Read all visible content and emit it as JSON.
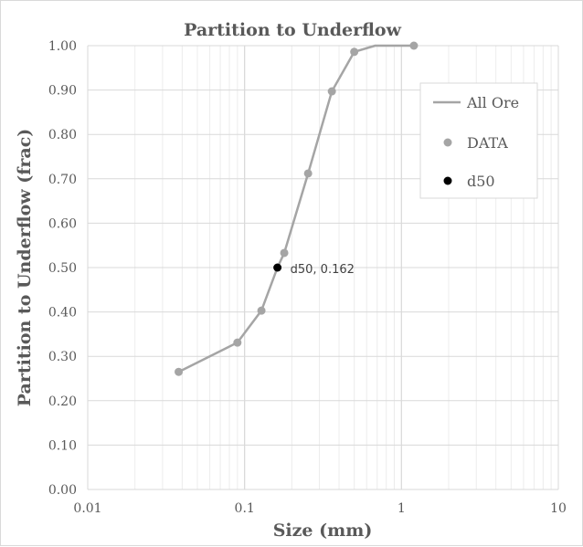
{
  "chart_data": {
    "type": "scatter",
    "title": "Partition to Underflow",
    "xlabel": "Size (mm)",
    "ylabel": "Partition to Underflow (frac)",
    "xscale": "log",
    "xlim": [
      0.01,
      10
    ],
    "ylim": [
      0,
      1
    ],
    "x_ticks": [
      "0.01",
      "0.1",
      "1",
      "10"
    ],
    "y_ticks": [
      "0.00",
      "0.10",
      "0.20",
      "0.30",
      "0.40",
      "0.50",
      "0.60",
      "0.70",
      "0.80",
      "0.90",
      "1.00"
    ],
    "grid": true,
    "legend_position": "right",
    "series": [
      {
        "name": "All Ore",
        "kind": "line",
        "color": "#a5a5a5",
        "x": [
          0.038,
          0.09,
          0.128,
          0.162,
          0.179,
          0.254,
          0.36,
          0.5,
          0.68,
          1.2
        ],
        "y": [
          0.265,
          0.331,
          0.403,
          0.5,
          0.533,
          0.712,
          0.897,
          0.986,
          1.0,
          1.0
        ]
      },
      {
        "name": "DATA",
        "kind": "marker",
        "color": "#a5a5a5",
        "x": [
          0.038,
          0.09,
          0.128,
          0.179,
          0.254,
          0.36,
          0.5,
          1.2
        ],
        "y": [
          0.265,
          0.331,
          0.403,
          0.533,
          0.712,
          0.897,
          0.986,
          1.0
        ]
      },
      {
        "name": "d50",
        "kind": "marker",
        "color": "#000000",
        "x": [
          0.162
        ],
        "y": [
          0.5
        ]
      }
    ],
    "annotations": [
      {
        "text": "d50, 0.162",
        "x": 0.162,
        "y": 0.5
      }
    ]
  }
}
